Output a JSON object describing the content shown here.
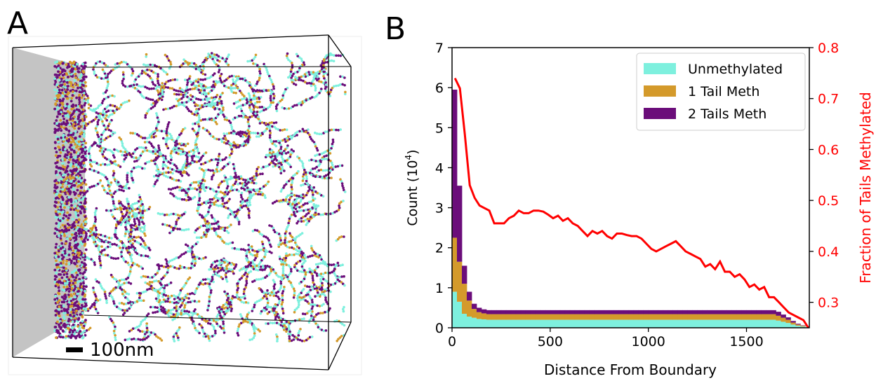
{
  "panels": {
    "a_label": "A",
    "b_label": "B"
  },
  "panel_a": {
    "scale_bar_label": "100nm",
    "colors": {
      "unmethylated": "#7ef0de",
      "one_tail": "#d49a2b",
      "two_tails": "#6b0d7a",
      "boundary_wall": "#c4c4c4"
    }
  },
  "chart_data": {
    "type": "bar",
    "xlabel": "Distance From Boundary",
    "ylabel": "Count",
    "ylabel_unit": "(10",
    "ylabel_exp": "4",
    "ylabel_close": ")",
    "y2label": "Fraction of Tails Methylated",
    "xlim": [
      0,
      1820
    ],
    "ylim": [
      0,
      7
    ],
    "y2lim": [
      0.25,
      0.8
    ],
    "xticks": [
      0,
      500,
      1000,
      1500
    ],
    "yticks": [
      0,
      1,
      2,
      3,
      4,
      5,
      6,
      7
    ],
    "y2ticks": [
      "0.3",
      "0.4",
      "0.5",
      "0.6",
      "0.7",
      "0.8"
    ],
    "y2tick_values": [
      0.3,
      0.4,
      0.5,
      0.6,
      0.7,
      0.8
    ],
    "bin_width": 25,
    "legend_position": "top-right",
    "stacked": true,
    "series": [
      {
        "name": "Unmethylated",
        "color": "#7ef0de",
        "values": [
          0.9,
          0.65,
          0.35,
          0.28,
          0.25,
          0.22,
          0.21,
          0.2,
          0.2,
          0.2,
          0.2,
          0.2,
          0.2,
          0.2,
          0.2,
          0.2,
          0.2,
          0.2,
          0.2,
          0.2,
          0.2,
          0.2,
          0.2,
          0.2,
          0.2,
          0.2,
          0.2,
          0.2,
          0.2,
          0.2,
          0.2,
          0.2,
          0.2,
          0.2,
          0.2,
          0.2,
          0.2,
          0.2,
          0.2,
          0.2,
          0.2,
          0.2,
          0.2,
          0.2,
          0.2,
          0.2,
          0.2,
          0.2,
          0.2,
          0.2,
          0.2,
          0.2,
          0.2,
          0.2,
          0.2,
          0.2,
          0.2,
          0.2,
          0.2,
          0.2,
          0.2,
          0.2,
          0.2,
          0.2,
          0.2,
          0.2,
          0.18,
          0.15,
          0.12,
          0.08,
          0.05,
          0.03,
          0.0
        ]
      },
      {
        "name": "1 Tail Meth",
        "color": "#d49a2b",
        "values": [
          1.35,
          1.0,
          0.75,
          0.4,
          0.22,
          0.17,
          0.15,
          0.14,
          0.14,
          0.14,
          0.14,
          0.14,
          0.14,
          0.14,
          0.14,
          0.14,
          0.14,
          0.14,
          0.14,
          0.14,
          0.14,
          0.14,
          0.14,
          0.14,
          0.14,
          0.14,
          0.14,
          0.14,
          0.14,
          0.14,
          0.14,
          0.14,
          0.14,
          0.14,
          0.14,
          0.14,
          0.14,
          0.14,
          0.14,
          0.14,
          0.14,
          0.14,
          0.14,
          0.14,
          0.14,
          0.14,
          0.14,
          0.14,
          0.14,
          0.14,
          0.14,
          0.14,
          0.14,
          0.14,
          0.14,
          0.14,
          0.14,
          0.14,
          0.14,
          0.14,
          0.14,
          0.14,
          0.14,
          0.14,
          0.14,
          0.14,
          0.12,
          0.1,
          0.08,
          0.05,
          0.03,
          0.02,
          0.0
        ]
      },
      {
        "name": "2 Tails Meth",
        "color": "#6b0d7a",
        "values": [
          3.7,
          1.9,
          0.45,
          0.22,
          0.13,
          0.11,
          0.1,
          0.1,
          0.1,
          0.1,
          0.1,
          0.1,
          0.1,
          0.1,
          0.1,
          0.1,
          0.1,
          0.1,
          0.1,
          0.1,
          0.1,
          0.1,
          0.1,
          0.1,
          0.1,
          0.1,
          0.1,
          0.1,
          0.1,
          0.1,
          0.1,
          0.1,
          0.1,
          0.1,
          0.1,
          0.1,
          0.1,
          0.1,
          0.1,
          0.1,
          0.1,
          0.1,
          0.1,
          0.1,
          0.1,
          0.1,
          0.1,
          0.1,
          0.1,
          0.1,
          0.1,
          0.1,
          0.1,
          0.1,
          0.1,
          0.1,
          0.1,
          0.1,
          0.1,
          0.1,
          0.1,
          0.1,
          0.1,
          0.1,
          0.1,
          0.1,
          0.1,
          0.08,
          0.06,
          0.04,
          0.02,
          0.01,
          0.0
        ]
      }
    ],
    "fraction_line": {
      "color": "#ff0000",
      "x": [
        15,
        40,
        65,
        90,
        115,
        140,
        165,
        190,
        215,
        240,
        265,
        290,
        315,
        340,
        365,
        390,
        415,
        440,
        465,
        490,
        515,
        540,
        565,
        590,
        615,
        640,
        665,
        690,
        715,
        740,
        765,
        790,
        815,
        840,
        865,
        890,
        915,
        940,
        965,
        990,
        1015,
        1040,
        1065,
        1090,
        1115,
        1140,
        1165,
        1190,
        1215,
        1240,
        1265,
        1290,
        1315,
        1340,
        1365,
        1390,
        1415,
        1440,
        1465,
        1490,
        1515,
        1540,
        1565,
        1590,
        1615,
        1640,
        1665,
        1690,
        1715,
        1740,
        1765,
        1790,
        1815
      ],
      "y": [
        0.74,
        0.72,
        0.63,
        0.53,
        0.505,
        0.49,
        0.485,
        0.48,
        0.455,
        0.455,
        0.455,
        0.465,
        0.47,
        0.48,
        0.475,
        0.475,
        0.48,
        0.48,
        0.478,
        0.472,
        0.465,
        0.47,
        0.46,
        0.465,
        0.455,
        0.45,
        0.44,
        0.43,
        0.44,
        0.435,
        0.44,
        0.43,
        0.425,
        0.435,
        0.435,
        0.432,
        0.43,
        0.43,
        0.425,
        0.415,
        0.405,
        0.4,
        0.405,
        0.41,
        0.415,
        0.42,
        0.41,
        0.4,
        0.395,
        0.39,
        0.385,
        0.37,
        0.375,
        0.365,
        0.38,
        0.36,
        0.36,
        0.35,
        0.355,
        0.345,
        0.33,
        0.335,
        0.325,
        0.33,
        0.31,
        0.31,
        0.3,
        0.29,
        0.28,
        0.275,
        0.27,
        0.265,
        0.25
      ]
    }
  }
}
